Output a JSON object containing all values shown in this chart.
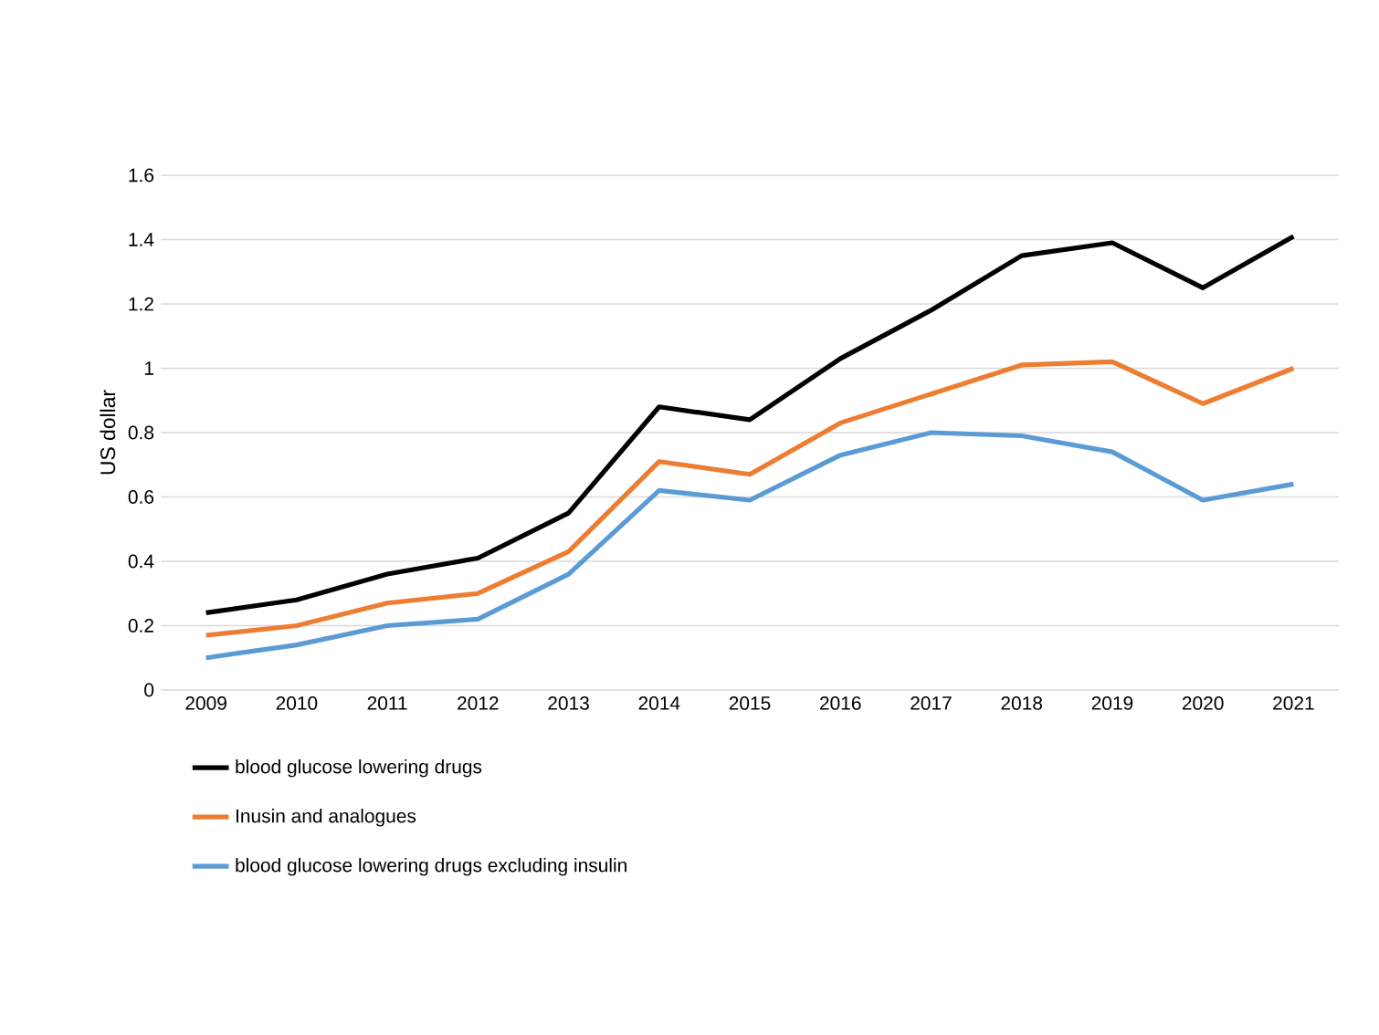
{
  "chart_data": {
    "type": "line",
    "ylabel": "US dollar",
    "categories": [
      "2009",
      "2010",
      "2011",
      "2012",
      "2013",
      "2014",
      "2015",
      "2016",
      "2017",
      "2018",
      "2019",
      "2020",
      "2021"
    ],
    "series": [
      {
        "name": "blood glucose lowering drugs",
        "color": "#000000",
        "values": [
          0.24,
          0.28,
          0.36,
          0.41,
          0.55,
          0.88,
          0.84,
          1.03,
          1.18,
          1.35,
          1.39,
          1.25,
          1.41
        ]
      },
      {
        "name": "Inusin and analogues",
        "color": "#ed7d31",
        "values": [
          0.17,
          0.2,
          0.27,
          0.3,
          0.43,
          0.71,
          0.67,
          0.83,
          0.92,
          1.01,
          1.02,
          0.89,
          1.0
        ]
      },
      {
        "name": "blood glucose lowering drugs excluding insulin",
        "color": "#5b9bd5",
        "values": [
          0.1,
          0.14,
          0.2,
          0.22,
          0.36,
          0.62,
          0.59,
          0.73,
          0.8,
          0.79,
          0.74,
          0.59,
          0.64
        ]
      }
    ],
    "ylim": [
      0,
      1.6
    ],
    "yticks": [
      0,
      0.2,
      0.4,
      0.6,
      0.8,
      1,
      1.2,
      1.4,
      1.6
    ],
    "grid": "y",
    "legend": "bottom",
    "marker": "none",
    "line_style": "solid"
  }
}
